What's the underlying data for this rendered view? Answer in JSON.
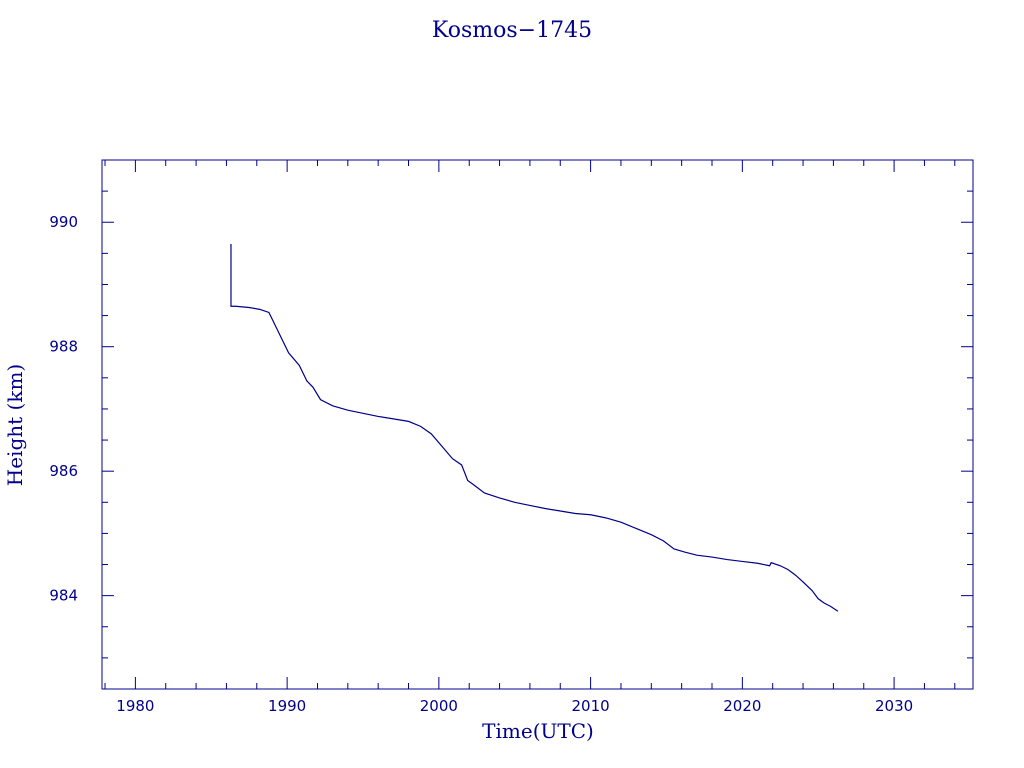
{
  "chart_data": {
    "type": "line",
    "title": "Kosmos−1745",
    "xlabel": "Time(UTC)",
    "ylabel": "Height (km)",
    "xlim": [
      1977.8,
      2035.2
    ],
    "ylim": [
      982.5,
      991.0
    ],
    "x_major_ticks": [
      1980,
      1990,
      2000,
      2010,
      2020,
      2030
    ],
    "x_tick_labels": [
      "1980",
      "1990",
      "2000",
      "2010",
      "2020",
      "2030"
    ],
    "y_major_ticks": [
      984,
      986,
      988,
      990
    ],
    "y_tick_labels": [
      "984",
      "986",
      "988",
      "990"
    ],
    "grid": false,
    "color": "#00008b",
    "series": [
      {
        "x": [
          1986.3,
          1986.3,
          1986.6,
          1987.5,
          1988.2,
          1988.8,
          1989.2,
          1989.7,
          1990.1,
          1990.8,
          1991.3,
          1991.7,
          1992.2,
          1993.0,
          1994.0,
          1995.0,
          1996.0,
          1997.0,
          1998.0,
          1998.8,
          1999.5,
          2000.2,
          2000.9,
          2001.5,
          2001.9,
          2002.3,
          2003.0,
          2004.0,
          2005.0,
          2006.0,
          2007.0,
          2008.0,
          2009.0,
          2010.0,
          2011.0,
          2012.0,
          2013.0,
          2014.0,
          2014.8,
          2015.5,
          2016.2,
          2017.0,
          2018.0,
          2019.0,
          2020.0,
          2021.0,
          2021.8,
          2021.9,
          2022.5,
          2023.0,
          2023.5,
          2024.0,
          2024.6,
          2025.0,
          2025.4,
          2025.8,
          2026.3
        ],
        "y": [
          989.65,
          988.65,
          988.65,
          988.63,
          988.6,
          988.55,
          988.35,
          988.1,
          987.9,
          987.7,
          987.45,
          987.35,
          987.15,
          987.05,
          986.98,
          986.93,
          986.88,
          986.84,
          986.8,
          986.72,
          986.6,
          986.4,
          986.2,
          986.1,
          985.85,
          985.78,
          985.65,
          985.57,
          985.5,
          985.45,
          985.4,
          985.36,
          985.32,
          985.3,
          985.25,
          985.18,
          985.08,
          984.98,
          984.88,
          984.75,
          984.7,
          984.65,
          984.62,
          984.58,
          984.55,
          984.52,
          984.48,
          984.53,
          984.48,
          984.42,
          984.33,
          984.22,
          984.08,
          983.95,
          983.88,
          983.83,
          983.75
        ]
      }
    ]
  }
}
